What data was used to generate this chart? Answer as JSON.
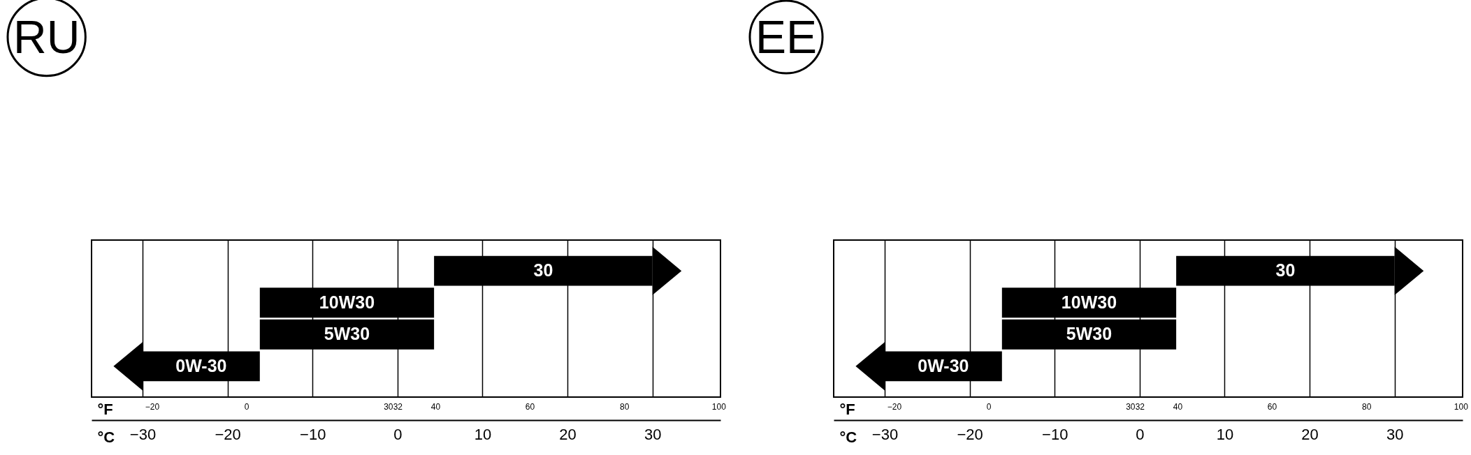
{
  "chart_data": [
    {
      "type": "bar",
      "title": "RU",
      "orientation": "horizontal",
      "categories": [
        "30",
        "10W30",
        "5W30",
        "0W-30"
      ],
      "base": [
        4.3,
        -16.2,
        -16.2,
        -30
      ],
      "values": [
        25.7,
        20.5,
        20.5,
        13.8
      ],
      "color": "#000000",
      "xlim": [
        -36,
        38
      ],
      "xticks": [
        -30,
        -20,
        -10,
        0,
        10,
        20,
        30
      ],
      "xlabel": "°C",
      "x2lim": [
        -32.8,
        100.4
      ],
      "x2ticks": [
        -20,
        0,
        30,
        32,
        40,
        60,
        80,
        100
      ],
      "x2label": "°F",
      "grid": "x",
      "tick_labels": "x"
    },
    {
      "type": "bar",
      "title": "EE",
      "orientation": "horizontal",
      "categories": [
        "30",
        "10W30",
        "5W30",
        "0W-30"
      ],
      "base": [
        4.3,
        -16.2,
        -16.2,
        -30
      ],
      "values": [
        25.7,
        20.5,
        20.5,
        13.8
      ],
      "color": "#000000",
      "xlim": [
        -36,
        38
      ],
      "xticks": [
        -30,
        -20,
        -10,
        0,
        10,
        20,
        30
      ],
      "xlabel": "°C",
      "x2lim": [
        -32.8,
        100.4
      ],
      "x2ticks": [
        -20,
        0,
        30,
        32,
        40,
        60,
        80,
        100
      ],
      "x2label": "°F",
      "grid": "x",
      "tick_labels": "x"
    }
  ]
}
